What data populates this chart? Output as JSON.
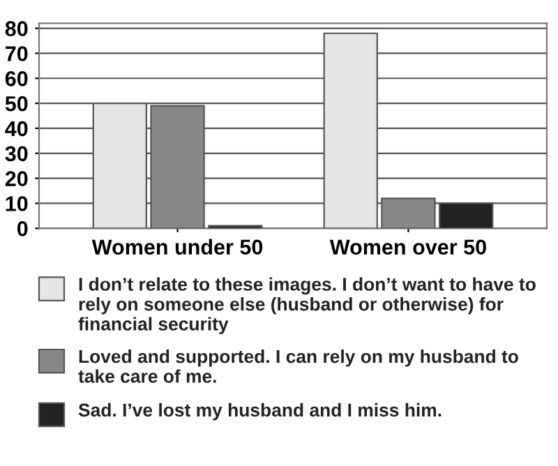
{
  "chart_data": {
    "type": "bar",
    "categories": [
      "Women under 50",
      "Women over 50"
    ],
    "series": [
      {
        "name": "I don’t relate to these images. I don’t want to have to rely on someone else (husband or otherwise) for financial security",
        "color": "#e6e6e6",
        "values": [
          50,
          78
        ]
      },
      {
        "name": "Loved and supported. I can rely on my husband to take care of me.",
        "color": "#888888",
        "values": [
          49,
          12
        ]
      },
      {
        "name": "Sad. I’ve lost my husband and I miss him.",
        "color": "#222222",
        "values": [
          1,
          10
        ]
      }
    ],
    "ylim": [
      0,
      82
    ],
    "yticks": [
      0,
      10,
      20,
      30,
      40,
      50,
      60,
      70,
      80
    ],
    "grid": "y",
    "legend": "bottom"
  }
}
